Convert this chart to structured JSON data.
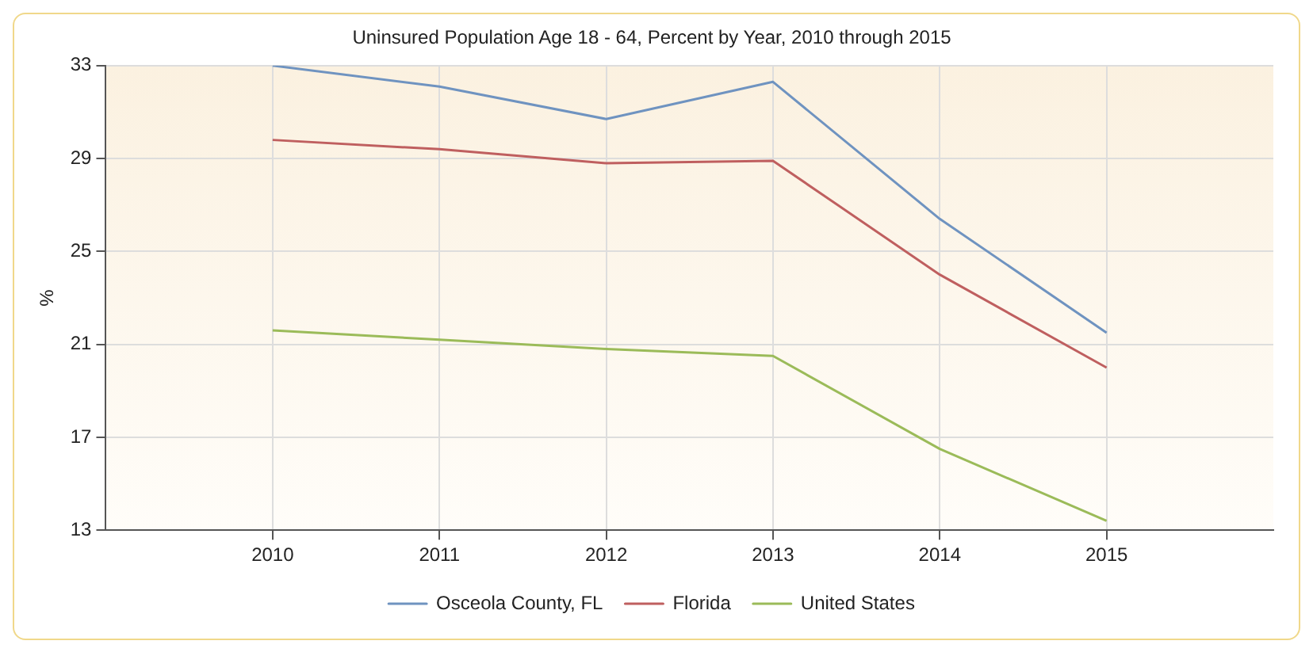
{
  "chart_data": {
    "type": "line",
    "title": "Uninsured Population Age 18 - 64, Percent by Year, 2010 through 2015",
    "ylabel": "%",
    "x": [
      2010,
      2011,
      2012,
      2013,
      2014,
      2015
    ],
    "series": [
      {
        "name": "Osceola County, FL",
        "color": "#6f93c0",
        "values": [
          33.0,
          32.1,
          30.7,
          32.3,
          26.4,
          21.5
        ]
      },
      {
        "name": "Florida",
        "color": "#bf5f5f",
        "values": [
          29.8,
          29.4,
          28.8,
          28.9,
          24.0,
          20.0
        ]
      },
      {
        "name": "United States",
        "color": "#9bbb59",
        "values": [
          21.6,
          21.2,
          20.8,
          20.5,
          16.5,
          13.4
        ]
      }
    ],
    "xlim": [
      2009,
      2016
    ],
    "xticks": [
      2010,
      2011,
      2012,
      2013,
      2014,
      2015
    ],
    "ylim": [
      13,
      33
    ],
    "yticks": [
      13,
      17,
      21,
      25,
      29,
      33
    ],
    "grid": true,
    "legend": "bottom",
    "marker": "none",
    "line_style": "solid"
  }
}
